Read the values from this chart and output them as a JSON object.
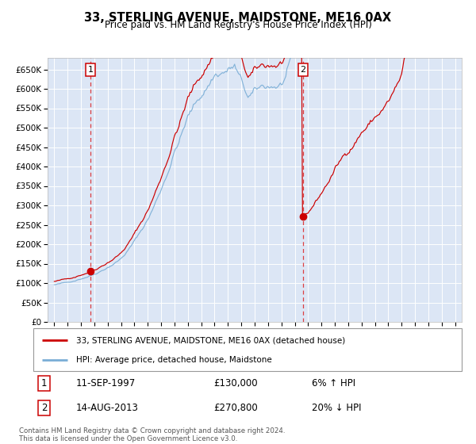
{
  "title": "33, STERLING AVENUE, MAIDSTONE, ME16 0AX",
  "subtitle": "Price paid vs. HM Land Registry's House Price Index (HPI)",
  "bg_color": "#dce6f5",
  "red_line_color": "#cc0000",
  "blue_line_color": "#7aaed6",
  "sale1_year": 1997.71,
  "sale2_year": 2013.62,
  "sale1_price": 130000,
  "sale2_price": 270800,
  "legend_label_red": "33, STERLING AVENUE, MAIDSTONE, ME16 0AX (detached house)",
  "legend_label_blue": "HPI: Average price, detached house, Maidstone",
  "annotation1_date": "11-SEP-1997",
  "annotation1_price": "£130,000",
  "annotation1_hpi": "6% ↑ HPI",
  "annotation2_date": "14-AUG-2013",
  "annotation2_price": "£270,800",
  "annotation2_hpi": "20% ↓ HPI",
  "footer": "Contains HM Land Registry data © Crown copyright and database right 2024.\nThis data is licensed under the Open Government Licence v3.0.",
  "ylim_max": 680000,
  "xlim_start": 1994.5,
  "xlim_end": 2025.5
}
